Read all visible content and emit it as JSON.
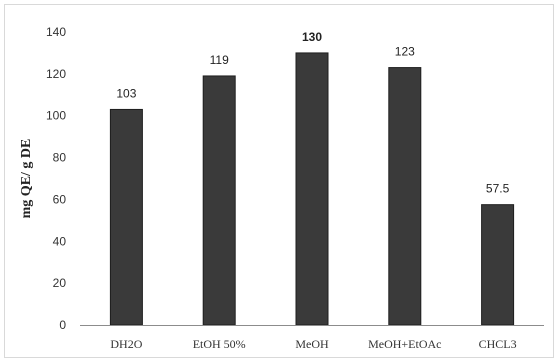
{
  "chart_data": {
    "type": "bar",
    "title": "",
    "xlabel": "",
    "ylabel": "mg QE/ g DE",
    "categories": [
      "DH2O",
      "EtOH 50%",
      "MeOH",
      "MeOH+EtOAc",
      "CHCL3"
    ],
    "values": [
      103,
      119,
      130,
      123,
      57.5
    ],
    "data_labels": [
      "103",
      "119",
      "130",
      "123",
      "57.5"
    ],
    "bold_labels": [
      false,
      false,
      true,
      false,
      false
    ],
    "ylim": [
      0,
      140
    ],
    "y_ticks": [
      0,
      20,
      40,
      60,
      80,
      100,
      120,
      140
    ],
    "grid": false,
    "legend": "none",
    "bar_color": "#3a3a3a",
    "axis_color": "#8c8c8c"
  }
}
